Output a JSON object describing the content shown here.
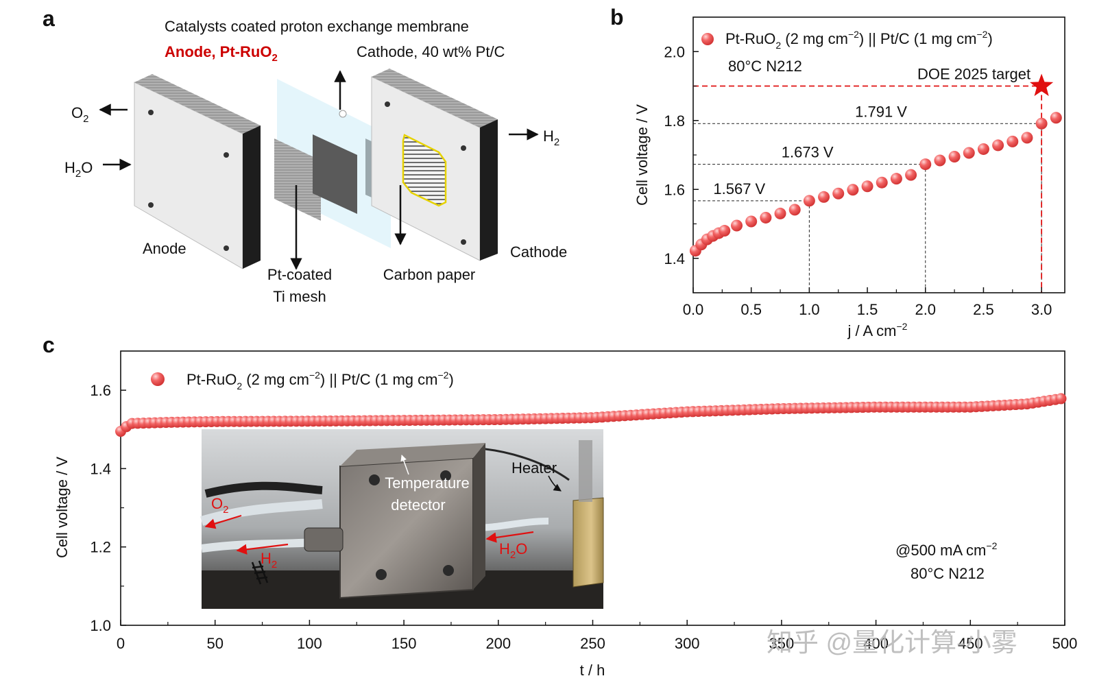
{
  "figure": {
    "panel_a": {
      "letter": "a",
      "title": "Catalysts coated proton exchange membrane",
      "anode_label_prefix": "Anode, Pt-RuO",
      "anode_label_sub": "2",
      "cathode_label": "Cathode, 40 wt% Pt/C",
      "o2": "O",
      "o2_sub": "2",
      "h2o_pre": "H",
      "h2o_sub": "2",
      "h2o_post": "O",
      "h2": "H",
      "h2_sub": "2",
      "anode": "Anode",
      "cathode": "Cathode",
      "mesh_line1": "Pt-coated",
      "mesh_line2": "Ti mesh",
      "carbon_paper": "Carbon paper"
    },
    "panel_b": {
      "letter": "b"
    },
    "panel_c": {
      "letter": "c",
      "inset": {
        "temperature": "Temperature",
        "detector": "detector",
        "heater": "Heater",
        "o2": "O",
        "o2_sub": "2",
        "h2": "H",
        "h2_sub": "2",
        "h2o_pre": "H",
        "h2o_sub": "2",
        "h2o_post": "O"
      }
    },
    "watermark": "知乎 @量化计算-小雾"
  },
  "chart_data": [
    {
      "type": "scatter",
      "panel": "b",
      "title": "",
      "legend": "Pt-RuO2 (2 mg cm−2) || Pt/C (1 mg cm−2)",
      "legend_parts": [
        "Pt-RuO",
        "2",
        " (2 mg cm",
        "−2",
        ") || Pt/C (1 mg cm",
        "−2",
        ")"
      ],
      "condition": "80°C N212",
      "xlabel": "j / A cm",
      "xlabel_sup": "−2",
      "ylabel": "Cell voltage / V",
      "xlim": [
        0,
        3.2
      ],
      "ylim": [
        1.3,
        2.1
      ],
      "xticks": [
        "0.0",
        "0.5",
        "1.0",
        "1.5",
        "2.0",
        "2.5",
        "3.0"
      ],
      "yticks": [
        "1.4",
        "1.6",
        "1.8",
        "2.0"
      ],
      "x": [
        0.02,
        0.07,
        0.12,
        0.17,
        0.22,
        0.27,
        0.375,
        0.5,
        0.625,
        0.75,
        0.875,
        1.0,
        1.125,
        1.25,
        1.375,
        1.5,
        1.625,
        1.75,
        1.875,
        2.0,
        2.125,
        2.25,
        2.375,
        2.5,
        2.625,
        2.75,
        2.875,
        3.0,
        3.125
      ],
      "y": [
        1.422,
        1.44,
        1.455,
        1.465,
        1.473,
        1.48,
        1.495,
        1.507,
        1.518,
        1.53,
        1.541,
        1.567,
        1.578,
        1.588,
        1.599,
        1.609,
        1.62,
        1.631,
        1.642,
        1.673,
        1.684,
        1.695,
        1.706,
        1.717,
        1.728,
        1.739,
        1.75,
        1.791,
        1.808
      ],
      "annotations": [
        {
          "label": "1.567 V",
          "x": 1.0,
          "y": 1.567
        },
        {
          "label": "1.673 V",
          "x": 2.0,
          "y": 1.673
        },
        {
          "label": "1.791 V",
          "x": 3.0,
          "y": 1.791
        }
      ],
      "target": {
        "label": "DOE 2025 target",
        "x": 3.0,
        "y": 1.9,
        "color": "#e01010"
      },
      "marker_color": "#f05a5a"
    },
    {
      "type": "scatter",
      "panel": "c",
      "title": "",
      "legend": "Pt-RuO2 (2 mg cm−2) || Pt/C (1 mg cm−2)",
      "legend_parts": [
        "Pt-RuO",
        "2",
        " (2 mg cm",
        "−2",
        ") || Pt/C (1 mg cm",
        "−2",
        ")"
      ],
      "condition_line1": "@500 mA cm",
      "condition_sup": "−2",
      "condition_line2": "80°C N212",
      "xlabel": "t / h",
      "ylabel": "Cell voltage / V",
      "xlim": [
        0,
        500
      ],
      "ylim": [
        1.0,
        1.7
      ],
      "xticks": [
        "0",
        "50",
        "100",
        "150",
        "200",
        "250",
        "300",
        "350",
        "400",
        "450",
        "500"
      ],
      "yticks": [
        "1.0",
        "1.2",
        "1.4",
        "1.6"
      ],
      "x": [
        0,
        5,
        25,
        50,
        100,
        150,
        200,
        250,
        300,
        350,
        400,
        450,
        480,
        500
      ],
      "y": [
        1.495,
        1.515,
        1.518,
        1.52,
        1.521,
        1.523,
        1.525,
        1.53,
        1.545,
        1.553,
        1.557,
        1.557,
        1.565,
        1.58
      ],
      "marker_color": "#f05a5a"
    }
  ]
}
